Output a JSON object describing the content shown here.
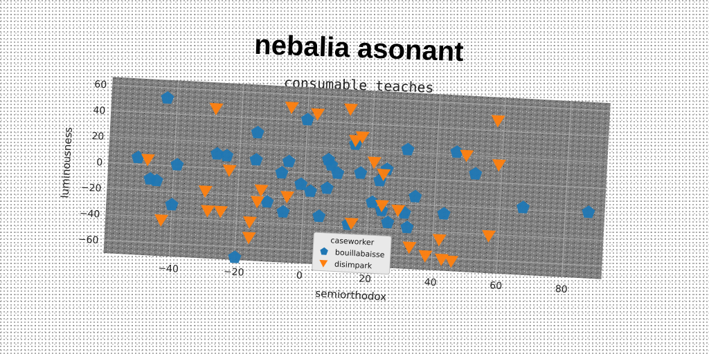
{
  "chart_data": {
    "type": "scatter",
    "title": "nebalia asonant",
    "subtitle": "consumable teaches",
    "xlabel": "semiorthodox",
    "ylabel": "luminousness",
    "xlim": [
      -60,
      92
    ],
    "ylim": [
      -70,
      66
    ],
    "xticks": [
      -40,
      -20,
      0,
      20,
      40,
      60,
      80
    ],
    "yticks": [
      -60,
      -40,
      -20,
      0,
      20,
      40,
      60
    ],
    "grid": true,
    "legend": {
      "title": "caseworker",
      "position": "lower-center"
    },
    "series": [
      {
        "name": "bouillabaisse",
        "marker": "pentagon",
        "color": "#1f77b4",
        "points": [
          [
            -43,
            52
          ],
          [
            -51,
            5
          ],
          [
            -47,
            -11
          ],
          [
            -45,
            -12
          ],
          [
            -39,
            1
          ],
          [
            -40,
            -30
          ],
          [
            -27,
            11
          ],
          [
            -24,
            10
          ],
          [
            -15,
            29
          ],
          [
            -15,
            8
          ],
          [
            -11,
            -24
          ],
          [
            -7,
            -1
          ],
          [
            -5,
            8
          ],
          [
            -6,
            -31
          ],
          [
            -1,
            -9
          ],
          [
            0,
            41
          ],
          [
            2,
            -14
          ],
          [
            7,
            11
          ],
          [
            8,
            7
          ],
          [
            7,
            -11
          ],
          [
            5,
            -33
          ],
          [
            10,
            1
          ],
          [
            15,
            24
          ],
          [
            17,
            2
          ],
          [
            14,
            -38
          ],
          [
            21,
            -20
          ],
          [
            23,
            -3
          ],
          [
            25,
            6
          ],
          [
            24,
            -26
          ],
          [
            26,
            -35
          ],
          [
            31,
            22
          ],
          [
            31,
            -27
          ],
          [
            32,
            -38
          ],
          [
            34,
            -14
          ],
          [
            43,
            -26
          ],
          [
            46,
            22
          ],
          [
            52,
            6
          ],
          [
            67,
            -18
          ],
          [
            87,
            -19
          ],
          [
            -20,
            -68
          ]
        ]
      },
      {
        "name": "disimpark",
        "marker": "triangle-down",
        "color": "#ff7f0e",
        "points": [
          [
            -48,
            4
          ],
          [
            -43,
            -42
          ],
          [
            -28,
            46
          ],
          [
            -30,
            -18
          ],
          [
            -29,
            -33
          ],
          [
            -25,
            -33
          ],
          [
            -23,
            -1
          ],
          [
            -16,
            -40
          ],
          [
            -16,
            -52
          ],
          [
            -14,
            -24
          ],
          [
            -13,
            -15
          ],
          [
            -5,
            50
          ],
          [
            -5,
            -19
          ],
          [
            3,
            46
          ],
          [
            13,
            51
          ],
          [
            15,
            27
          ],
          [
            17,
            30
          ],
          [
            15,
            -37
          ],
          [
            21,
            11
          ],
          [
            24,
            2
          ],
          [
            24,
            -22
          ],
          [
            29,
            -25
          ],
          [
            33,
            -53
          ],
          [
            38,
            -59
          ],
          [
            42,
            -46
          ],
          [
            43,
            -61
          ],
          [
            46,
            -62
          ],
          [
            49,
            20
          ],
          [
            57,
            -41
          ],
          [
            58,
            48
          ],
          [
            59,
            14
          ]
        ]
      }
    ]
  }
}
